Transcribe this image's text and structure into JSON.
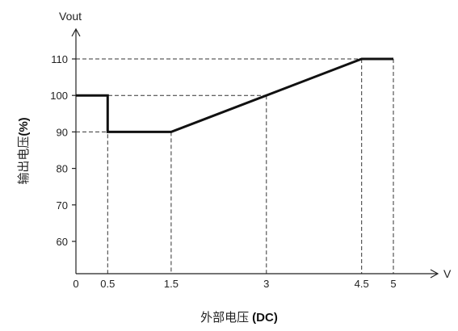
{
  "chart_data": {
    "type": "line",
    "xlabel_text": "外部电压",
    "xlabel_unit": "(DC)",
    "ylabel_text": "输出电压",
    "ylabel_unit": "(%)",
    "x_axis_letter": "V",
    "y_axis_letter": "Vout",
    "xlim": [
      0,
      5
    ],
    "ylim": [
      55,
      110
    ],
    "x_ticks": [
      0,
      0.5,
      1.5,
      3,
      4.5,
      5
    ],
    "x_tick_labels": [
      "0",
      "0.5",
      "1.5",
      "3",
      "4.5",
      "5"
    ],
    "y_ticks": [
      60,
      70,
      80,
      90,
      100,
      110
    ],
    "y_tick_labels": [
      "60",
      "70",
      "80",
      "90",
      "100",
      "110"
    ],
    "series": [
      {
        "x": [
          0,
          0.5,
          0.5,
          1.5,
          4.5,
          5
        ],
        "y": [
          100,
          100,
          90,
          90,
          110,
          110
        ]
      }
    ],
    "guides": {
      "horizontal": [
        {
          "y": 110,
          "x_to": 5
        },
        {
          "y": 100,
          "x_to": 3
        },
        {
          "y": 90,
          "x_to": 1.5
        }
      ],
      "vertical": [
        {
          "x": 0.5,
          "y_to": 100
        },
        {
          "x": 1.5,
          "y_to": 90
        },
        {
          "x": 3,
          "y_to": 100
        },
        {
          "x": 4.5,
          "y_to": 110
        },
        {
          "x": 5,
          "y_to": 110
        }
      ]
    },
    "grid": false,
    "legend": "none",
    "colors": {
      "line": "#111111",
      "guide": "#333333",
      "axis": "#222222"
    }
  }
}
